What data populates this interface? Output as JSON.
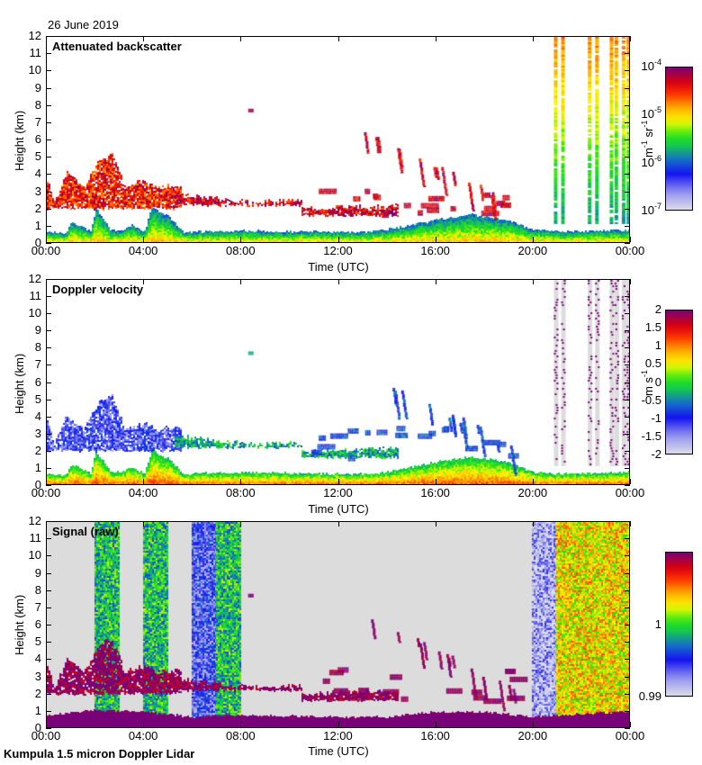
{
  "date": "26 June 2019",
  "footer": "Kumpula 1.5 micron Doppler Lidar",
  "chart_data": [
    {
      "type": "heatmap",
      "title": "Attenuated backscatter",
      "xlabel": "Time (UTC)",
      "ylabel": "Height (km)",
      "x_range_hours": [
        0,
        24
      ],
      "ylim": [
        0,
        12
      ],
      "x_ticks": [
        "00:00",
        "04:00",
        "08:00",
        "12:00",
        "16:00",
        "20:00",
        "00:00"
      ],
      "y_ticks": [
        "0",
        "1",
        "2",
        "3",
        "4",
        "5",
        "6",
        "7",
        "8",
        "9",
        "10",
        "11",
        "12"
      ],
      "colorbar": {
        "scale": "log",
        "range": [
          1e-07,
          0.0001
        ],
        "tick_labels": [
          {
            "base": "10",
            "exp": "-7"
          },
          {
            "base": "10",
            "exp": "-6"
          },
          {
            "base": "10",
            "exp": "-5"
          },
          {
            "base": "10",
            "exp": "-4"
          }
        ],
        "unit_base": [
          "m",
          "sr"
        ],
        "unit_exp": [
          "-1",
          "-1"
        ]
      },
      "background": "#ffffff",
      "features": [
        {
          "kind": "boundary_layer",
          "t0": 0,
          "t1": 24,
          "top_km": [
            [
              0,
              0.45
            ],
            [
              0.8,
              0.45
            ],
            [
              1,
              1.1
            ],
            [
              1.8,
              0.5
            ],
            [
              2.0,
              1.9
            ],
            [
              2.6,
              0.6
            ],
            [
              3,
              0.6
            ],
            [
              3.5,
              0.9
            ],
            [
              4.0,
              0.5
            ],
            [
              4.3,
              1.9
            ],
            [
              5.0,
              1.4
            ],
            [
              5.6,
              0.5
            ],
            [
              8,
              0.55
            ],
            [
              12,
              0.5
            ],
            [
              13.5,
              0.5
            ],
            [
              15,
              0.9
            ],
            [
              16,
              1.2
            ],
            [
              17.5,
              1.5
            ],
            [
              19,
              1.2
            ],
            [
              20,
              0.6
            ],
            [
              21,
              0.5
            ],
            [
              24,
              0.6
            ]
          ],
          "value": 0.35
        },
        {
          "kind": "cloud_layer",
          "t0": 0,
          "t1": 5.5,
          "base_km": 2.0,
          "top_km": [
            [
              0,
              3.6
            ],
            [
              0.3,
              2.3
            ],
            [
              0.8,
              4.0
            ],
            [
              1.5,
              3.2
            ],
            [
              2.2,
              4.9
            ],
            [
              2.7,
              5.1
            ],
            [
              3.2,
              3.2
            ],
            [
              4,
              3.6
            ],
            [
              4.5,
              3.2
            ],
            [
              5.3,
              3.3
            ]
          ],
          "value": 0.85
        },
        {
          "kind": "cloud_layer",
          "t0": 5.3,
          "t1": 10.5,
          "base_km": 2.2,
          "top_km": [
            [
              5.3,
              2.8
            ],
            [
              7,
              2.5
            ],
            [
              8.5,
              2.3
            ],
            [
              10.5,
              2.4
            ]
          ],
          "value": 0.9
        },
        {
          "kind": "cloud_layer",
          "t0": 10.5,
          "t1": 14.5,
          "base_km": 1.6,
          "top_km": [
            [
              10.5,
              1.9
            ],
            [
              12,
              2.0
            ],
            [
              14.5,
              2.1
            ]
          ],
          "value": 0.9
        },
        {
          "kind": "fallstreak",
          "t0": 12.8,
          "t1": 19.2,
          "y_start_km": 6.5,
          "y_end_km": 2.0,
          "value": 0.9
        },
        {
          "kind": "rain_column",
          "t_hours": [
            20.9,
            21.2,
            22.3,
            22.6,
            23.2,
            23.4,
            23.7,
            23.9
          ],
          "value": 0.75
        },
        {
          "kind": "speck",
          "t": 8.3,
          "h_km": 7.8,
          "value": 0.95
        }
      ]
    },
    {
      "type": "heatmap",
      "title": "Doppler velocity",
      "xlabel": "Time (UTC)",
      "ylabel": "Height (km)",
      "x_range_hours": [
        0,
        24
      ],
      "ylim": [
        0,
        12
      ],
      "x_ticks": [
        "00:00",
        "04:00",
        "08:00",
        "12:00",
        "16:00",
        "20:00",
        "00:00"
      ],
      "y_ticks": [
        "0",
        "1",
        "2",
        "3",
        "4",
        "5",
        "6",
        "7",
        "8",
        "9",
        "10",
        "11",
        "12"
      ],
      "colorbar": {
        "scale": "linear",
        "range": [
          -2,
          2
        ],
        "tick_labels": [
          "-2",
          "-1.5",
          "-1",
          "-0.5",
          "0",
          "0.5",
          "1",
          "1.5",
          "2"
        ],
        "unit_base": [
          "m",
          "s"
        ],
        "unit_exp": [
          "",
          "-1"
        ]
      },
      "background": "#ffffff",
      "features": [
        {
          "kind": "boundary_layer",
          "t0": 0,
          "t1": 24,
          "top_km": [
            [
              0,
              0.45
            ],
            [
              0.8,
              0.45
            ],
            [
              1,
              1.1
            ],
            [
              1.8,
              0.5
            ],
            [
              2.0,
              1.9
            ],
            [
              2.6,
              0.6
            ],
            [
              3,
              0.6
            ],
            [
              3.5,
              0.9
            ],
            [
              4.0,
              0.5
            ],
            [
              4.3,
              1.9
            ],
            [
              5.0,
              1.4
            ],
            [
              5.6,
              0.5
            ],
            [
              8,
              0.6
            ],
            [
              12,
              0.5
            ],
            [
              13.5,
              0.5
            ],
            [
              15,
              0.9
            ],
            [
              16,
              1.2
            ],
            [
              17.5,
              1.5
            ],
            [
              19,
              1.2
            ],
            [
              20,
              0.6
            ],
            [
              21,
              0.5
            ],
            [
              24,
              0.6
            ]
          ],
          "value": 0.45
        },
        {
          "kind": "cloud_layer",
          "t0": 0,
          "t1": 5.5,
          "base_km": 2.0,
          "top_km": [
            [
              0,
              3.6
            ],
            [
              0.3,
              2.3
            ],
            [
              0.8,
              4.0
            ],
            [
              1.5,
              3.2
            ],
            [
              2.2,
              4.9
            ],
            [
              2.7,
              5.1
            ],
            [
              3.2,
              3.2
            ],
            [
              4,
              3.6
            ],
            [
              4.5,
              3.2
            ],
            [
              5.3,
              3.3
            ]
          ],
          "value": 0.2
        },
        {
          "kind": "cloud_layer",
          "t0": 5.3,
          "t1": 10.5,
          "base_km": 2.2,
          "top_km": [
            [
              5.3,
              2.8
            ],
            [
              7,
              2.5
            ],
            [
              8.5,
              2.3
            ],
            [
              10.5,
              2.4
            ]
          ],
          "value": 0.42
        },
        {
          "kind": "cloud_layer",
          "t0": 10.5,
          "t1": 14.5,
          "base_km": 1.6,
          "top_km": [
            [
              10.5,
              1.9
            ],
            [
              12,
              2.0
            ],
            [
              14.5,
              2.1
            ]
          ],
          "value": 0.42
        },
        {
          "kind": "fallstreak",
          "t0": 12.8,
          "t1": 19.2,
          "y_start_km": 6.5,
          "y_end_km": 2.0,
          "value": 0.3
        },
        {
          "kind": "noise_column",
          "t_hours": [
            20.9,
            21.2,
            22.3,
            22.6,
            23.2,
            23.4,
            23.7,
            23.9
          ],
          "value": 1.0
        },
        {
          "kind": "speck",
          "t": 8.3,
          "h_km": 7.8,
          "value": 0.42
        }
      ]
    },
    {
      "type": "heatmap",
      "title": "Signal (raw)",
      "xlabel": "Time (UTC)",
      "ylabel": "Height (km)",
      "x_range_hours": [
        0,
        24
      ],
      "ylim": [
        0,
        12
      ],
      "x_ticks": [
        "00:00",
        "04:00",
        "08:00",
        "12:00",
        "16:00",
        "20:00",
        "00:00"
      ],
      "y_ticks": [
        "0",
        "1",
        "2",
        "3",
        "4",
        "5",
        "6",
        "7",
        "8",
        "9",
        "10",
        "11",
        "12"
      ],
      "colorbar": {
        "scale": "linear",
        "range": [
          0.99,
          1.01
        ],
        "tick_labels": [
          "0.99",
          "1"
        ],
        "unit_base": [],
        "unit_exp": []
      },
      "background": "#dcdcdc",
      "features": [
        {
          "kind": "noise_band",
          "t0": 2.0,
          "t1": 3.0,
          "value": 0.45
        },
        {
          "kind": "noise_band",
          "t0": 4.0,
          "t1": 5.0,
          "value": 0.45
        },
        {
          "kind": "noise_band",
          "t0": 6.0,
          "t1": 7.0,
          "value": 0.2
        },
        {
          "kind": "noise_band",
          "t0": 7.0,
          "t1": 8.0,
          "value": 0.45
        },
        {
          "kind": "noise_band",
          "t0": 20.0,
          "t1": 21.0,
          "value": 0.08
        },
        {
          "kind": "noise_band",
          "t0": 21.0,
          "t1": 24.0,
          "value": 0.65
        },
        {
          "kind": "boundary_layer",
          "t0": 0,
          "t1": 24,
          "top_km": [
            [
              0,
              0.6
            ],
            [
              2,
              0.9
            ],
            [
              4,
              0.8
            ],
            [
              6,
              0.5
            ],
            [
              8,
              0.6
            ],
            [
              12,
              0.5
            ],
            [
              14,
              0.5
            ],
            [
              16,
              0.8
            ],
            [
              18,
              0.8
            ],
            [
              20,
              0.5
            ],
            [
              21,
              0.6
            ],
            [
              24,
              0.8
            ]
          ],
          "value": 1.0
        },
        {
          "kind": "cloud_layer",
          "t0": 0,
          "t1": 5.5,
          "base_km": 2.0,
          "top_km": [
            [
              0,
              3.6
            ],
            [
              0.3,
              2.3
            ],
            [
              0.8,
              4.0
            ],
            [
              1.5,
              3.2
            ],
            [
              2.2,
              4.9
            ],
            [
              2.7,
              5.1
            ],
            [
              3.2,
              3.2
            ],
            [
              4,
              3.6
            ],
            [
              4.5,
              3.2
            ],
            [
              5.3,
              3.3
            ]
          ],
          "value": 1.0
        },
        {
          "kind": "cloud_layer",
          "t0": 5.3,
          "t1": 10.5,
          "base_km": 2.2,
          "top_km": [
            [
              5.3,
              2.8
            ],
            [
              7,
              2.5
            ],
            [
              8.5,
              2.3
            ],
            [
              10.5,
              2.4
            ]
          ],
          "value": 1.0
        },
        {
          "kind": "cloud_layer",
          "t0": 10.5,
          "t1": 14.5,
          "base_km": 1.6,
          "top_km": [
            [
              10.5,
              1.9
            ],
            [
              12,
              2.0
            ],
            [
              14.5,
              2.1
            ]
          ],
          "value": 1.0
        },
        {
          "kind": "fallstreak",
          "t0": 12.8,
          "t1": 19.2,
          "y_start_km": 6.5,
          "y_end_km": 2.0,
          "value": 1.0
        },
        {
          "kind": "speck",
          "t": 8.3,
          "h_km": 7.8,
          "value": 1.0
        }
      ]
    }
  ]
}
